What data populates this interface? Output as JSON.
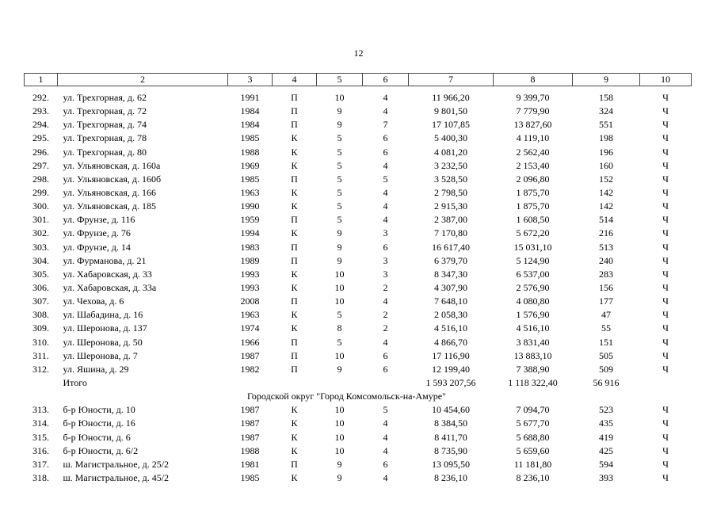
{
  "page_number": "12",
  "table": {
    "columns": [
      "1",
      "2",
      "3",
      "4",
      "5",
      "6",
      "7",
      "8",
      "9",
      "10"
    ],
    "total_label": "Итого",
    "rows": [
      {
        "type": "data",
        "cells": [
          "292.",
          "ул. Трехгорная, д. 62",
          "1991",
          "П",
          "10",
          "4",
          "11 966,20",
          "9 399,70",
          "158",
          "Ч"
        ]
      },
      {
        "type": "data",
        "cells": [
          "293.",
          "ул. Трехгорная, д. 72",
          "1984",
          "П",
          "9",
          "4",
          "9 801,50",
          "7 779,90",
          "324",
          "Ч"
        ]
      },
      {
        "type": "data",
        "cells": [
          "294.",
          "ул. Трехгорная, д. 74",
          "1984",
          "П",
          "9",
          "7",
          "17 107,85",
          "13 827,60",
          "551",
          "Ч"
        ]
      },
      {
        "type": "data",
        "cells": [
          "295.",
          "ул. Трехгорная, д. 78",
          "1985",
          "К",
          "5",
          "6",
          "5 400,30",
          "4 119,10",
          "198",
          "Ч"
        ]
      },
      {
        "type": "data",
        "cells": [
          "296.",
          "ул. Трехгорная, д. 80",
          "1988",
          "К",
          "5",
          "6",
          "4 081,20",
          "2 562,40",
          "196",
          "Ч"
        ]
      },
      {
        "type": "data",
        "cells": [
          "297.",
          "ул. Ульяновская, д. 160а",
          "1969",
          "К",
          "5",
          "4",
          "3 232,50",
          "2 153,40",
          "160",
          "Ч"
        ]
      },
      {
        "type": "data",
        "cells": [
          "298.",
          "ул. Ульяновская, д. 160б",
          "1985",
          "П",
          "5",
          "5",
          "3 528,50",
          "2 096,80",
          "152",
          "Ч"
        ]
      },
      {
        "type": "data",
        "cells": [
          "299.",
          "ул. Ульяновская, д. 166",
          "1963",
          "К",
          "5",
          "4",
          "2 798,50",
          "1 875,70",
          "142",
          "Ч"
        ]
      },
      {
        "type": "data",
        "cells": [
          "300.",
          "ул. Ульяновская, д. 185",
          "1990",
          "К",
          "5",
          "4",
          "2 915,30",
          "1 875,70",
          "142",
          "Ч"
        ]
      },
      {
        "type": "data",
        "cells": [
          "301.",
          "ул. Фрунзе, д. 116",
          "1959",
          "П",
          "5",
          "4",
          "2 387,00",
          "1 608,50",
          "514",
          "Ч"
        ]
      },
      {
        "type": "data",
        "cells": [
          "302.",
          "ул. Фрунзе, д. 76",
          "1994",
          "К",
          "9",
          "3",
          "7 170,80",
          "5 672,20",
          "216",
          "Ч"
        ]
      },
      {
        "type": "data",
        "cells": [
          "303.",
          "ул. Фрунзе, д. 14",
          "1983",
          "П",
          "9",
          "6",
          "16 617,40",
          "15 031,10",
          "513",
          "Ч"
        ]
      },
      {
        "type": "data",
        "cells": [
          "304.",
          "ул. Фурманова, д. 21",
          "1989",
          "П",
          "9",
          "3",
          "6 379,70",
          "5 124,90",
          "240",
          "Ч"
        ]
      },
      {
        "type": "data",
        "cells": [
          "305.",
          "ул. Хабаровская, д. 33",
          "1993",
          "К",
          "10",
          "3",
          "8 347,30",
          "6 537,00",
          "283",
          "Ч"
        ]
      },
      {
        "type": "data",
        "cells": [
          "306.",
          "ул. Хабаровская, д. 33а",
          "1993",
          "К",
          "10",
          "2",
          "4 307,90",
          "2 576,90",
          "156",
          "Ч"
        ]
      },
      {
        "type": "data",
        "cells": [
          "307.",
          "ул. Чехова, д. 6",
          "2008",
          "П",
          "10",
          "4",
          "7 648,10",
          "4 080,80",
          "177",
          "Ч"
        ]
      },
      {
        "type": "data",
        "cells": [
          "308.",
          "ул. Шабадина, д. 16",
          "1963",
          "К",
          "5",
          "2",
          "2 058,30",
          "1 576,90",
          "47",
          "Ч"
        ]
      },
      {
        "type": "data",
        "cells": [
          "309.",
          "ул. Шеронова, д. 137",
          "1974",
          "К",
          "8",
          "2",
          "4 516,10",
          "4 516,10",
          "55",
          "Ч"
        ]
      },
      {
        "type": "data",
        "cells": [
          "310.",
          "ул. Шеронова, д. 50",
          "1966",
          "П",
          "5",
          "4",
          "4 866,70",
          "3 831,40",
          "151",
          "Ч"
        ]
      },
      {
        "type": "data",
        "cells": [
          "311.",
          "ул. Шеронова, д. 7",
          "1987",
          "П",
          "10",
          "6",
          "17 116,90",
          "13 883,10",
          "505",
          "Ч"
        ]
      },
      {
        "type": "data",
        "cells": [
          "312.",
          "ул. Яшина, д. 29",
          "1982",
          "П",
          "9",
          "6",
          "12 199,40",
          "7 388,90",
          "509",
          "Ч"
        ]
      },
      {
        "type": "total",
        "label": "Итого",
        "cells": [
          "1 593 207,56",
          "1 118 322,40",
          "56 916"
        ]
      },
      {
        "type": "section",
        "title": "Городской округ \"Город Комсомольск-на-Амуре\""
      },
      {
        "type": "data",
        "cells": [
          "313.",
          "б-р Юности, д. 10",
          "1987",
          "К",
          "10",
          "5",
          "10 454,60",
          "7 094,70",
          "523",
          "Ч"
        ]
      },
      {
        "type": "data",
        "cells": [
          "314.",
          "б-р Юности, д. 16",
          "1987",
          "К",
          "10",
          "4",
          "8 384,50",
          "5 677,70",
          "435",
          "Ч"
        ]
      },
      {
        "type": "data",
        "cells": [
          "315.",
          "б-р Юности, д. 6",
          "1987",
          "К",
          "10",
          "4",
          "8 411,70",
          "5 688,80",
          "419",
          "Ч"
        ]
      },
      {
        "type": "data",
        "cells": [
          "316.",
          "б-р Юности, д. 6/2",
          "1988",
          "К",
          "10",
          "4",
          "8 735,90",
          "5 659,60",
          "425",
          "Ч"
        ]
      },
      {
        "type": "data",
        "cells": [
          "317.",
          "ш. Магистральное, д. 25/2",
          "1981",
          "П",
          "9",
          "6",
          "13 095,50",
          "11 181,80",
          "594",
          "Ч"
        ]
      },
      {
        "type": "data",
        "cells": [
          "318.",
          "ш. Магистральное, д. 45/2",
          "1985",
          "К",
          "9",
          "4",
          "8 236,10",
          "8 236,10",
          "393",
          "Ч"
        ]
      }
    ]
  }
}
